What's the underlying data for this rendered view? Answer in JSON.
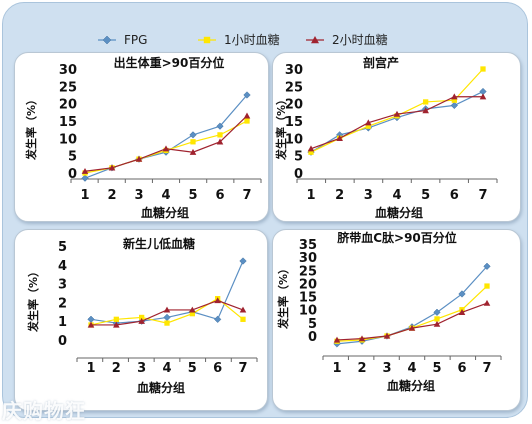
{
  "legend": [
    {
      "name": "FPG",
      "color": "#5b8fc3",
      "marker": "diamond"
    },
    {
      "name": "1小时血糖",
      "color": "#ffe600",
      "marker": "square"
    },
    {
      "name": "2小时血糖",
      "color": "#a0232f",
      "marker": "triangle"
    }
  ],
  "watermark": "庆购物狂",
  "chart_data": [
    {
      "type": "line",
      "title": "出生体重>90百分位",
      "xlabel": "血糖分组",
      "ylabel": "发生率（%）",
      "x": [
        1,
        2,
        3,
        4,
        5,
        6,
        7
      ],
      "yticks": [
        0,
        5,
        10,
        15,
        20,
        25,
        30
      ],
      "ylim": [
        -3,
        30
      ],
      "grid": false,
      "series": [
        {
          "name": "FPG",
          "values": [
            -1.5,
            1.5,
            4,
            6,
            11,
            13.5,
            22.5
          ]
        },
        {
          "name": "1小时血糖",
          "values": [
            0,
            1.5,
            4,
            6.5,
            9,
            11,
            15
          ]
        },
        {
          "name": "2小时血糖",
          "values": [
            0.5,
            1.5,
            4,
            7,
            6,
            9,
            16.5
          ]
        }
      ]
    },
    {
      "type": "line",
      "title": "剖宫产",
      "xlabel": "血糖分组",
      "ylabel": "发生率（%）",
      "x": [
        1,
        2,
        3,
        4,
        5,
        6,
        7
      ],
      "yticks": [
        0,
        5,
        10,
        15,
        20,
        25,
        30
      ],
      "ylim": [
        -3,
        30
      ],
      "grid": false,
      "series": [
        {
          "name": "FPG",
          "values": [
            6,
            11,
            13,
            16,
            18.5,
            19.5,
            23.5
          ]
        },
        {
          "name": "1小时血糖",
          "values": [
            6,
            10,
            13.5,
            16.5,
            20.5,
            21,
            30
          ]
        },
        {
          "name": "2小时血糖",
          "values": [
            7,
            10,
            14.5,
            17,
            18,
            22,
            22
          ]
        }
      ]
    },
    {
      "type": "line",
      "title": "新生儿低血糖",
      "xlabel": "血糖分组",
      "ylabel": "发生率（%）",
      "x": [
        1,
        2,
        3,
        4,
        5,
        6,
        7
      ],
      "yticks": [
        0,
        1,
        2,
        3,
        4,
        5
      ],
      "ylim": [
        -0.5,
        5
      ],
      "grid": false,
      "series": [
        {
          "name": "FPG",
          "values": [
            1.1,
            0.9,
            1.0,
            1.2,
            1.5,
            1.1,
            4.2
          ]
        },
        {
          "name": "1小时血糖",
          "values": [
            0.8,
            1.1,
            1.2,
            0.9,
            1.4,
            2.2,
            1.1
          ]
        },
        {
          "name": "2小时血糖",
          "values": [
            0.8,
            0.8,
            1.0,
            1.6,
            1.6,
            2.1,
            1.6
          ]
        }
      ]
    },
    {
      "type": "line",
      "title": "脐带血C肽>90百分位",
      "xlabel": "血糖分组",
      "ylabel": "发生率（%）",
      "x": [
        1,
        2,
        3,
        4,
        5,
        6,
        7
      ],
      "yticks": [
        0,
        5,
        10,
        15,
        20,
        25,
        30,
        35
      ],
      "ylim": [
        -5,
        35
      ],
      "grid": false,
      "series": [
        {
          "name": "FPG",
          "values": [
            -3,
            -2,
            0,
            3.5,
            9,
            16,
            26.5
          ]
        },
        {
          "name": "1小时血糖",
          "values": [
            -2,
            -1.5,
            0,
            3,
            6.5,
            10,
            19
          ]
        },
        {
          "name": "2小时血糖",
          "values": [
            -1.5,
            -1,
            0,
            3,
            4.5,
            9,
            12.5
          ]
        }
      ]
    }
  ]
}
